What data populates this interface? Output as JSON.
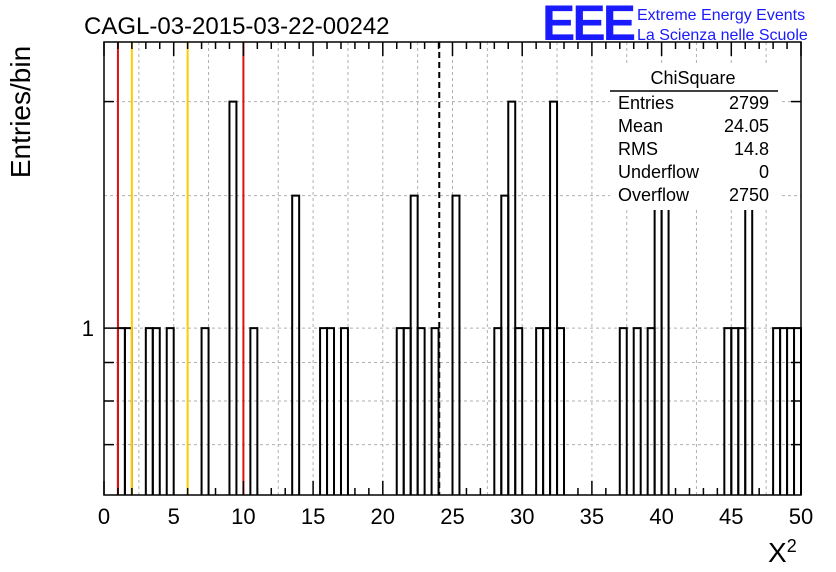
{
  "chart_data": {
    "type": "histogram",
    "title": "CAGL-03-2015-03-22-00242",
    "xlabel": "X",
    "xlabel_superscript": "2",
    "ylabel": "Entries/bin",
    "xlim": [
      0,
      50
    ],
    "ylim": [
      0.6,
      2.4
    ],
    "log_y": true,
    "grid": true,
    "bin_width": 0.5,
    "x_ticks": [
      0,
      5,
      10,
      15,
      20,
      25,
      30,
      35,
      40,
      45,
      50
    ],
    "y_tick_labels": [
      {
        "value": 1,
        "label": "1"
      }
    ],
    "bins": [
      {
        "x": 1.0,
        "count": 1
      },
      {
        "x": 1.5,
        "count": 1
      },
      {
        "x": 3.0,
        "count": 1
      },
      {
        "x": 3.5,
        "count": 1
      },
      {
        "x": 4.5,
        "count": 1
      },
      {
        "x": 7.0,
        "count": 1
      },
      {
        "x": 9.0,
        "count": 2
      },
      {
        "x": 10.5,
        "count": 1
      },
      {
        "x": 13.5,
        "count": 1.5
      },
      {
        "x": 15.5,
        "count": 1
      },
      {
        "x": 16.0,
        "count": 1
      },
      {
        "x": 17.0,
        "count": 1
      },
      {
        "x": 21.0,
        "count": 1
      },
      {
        "x": 21.5,
        "count": 1
      },
      {
        "x": 22.0,
        "count": 1.5
      },
      {
        "x": 22.5,
        "count": 1
      },
      {
        "x": 23.5,
        "count": 1
      },
      {
        "x": 25.0,
        "count": 1.5
      },
      {
        "x": 28.0,
        "count": 1
      },
      {
        "x": 28.5,
        "count": 1.5
      },
      {
        "x": 29.0,
        "count": 2
      },
      {
        "x": 29.5,
        "count": 1
      },
      {
        "x": 31.0,
        "count": 1
      },
      {
        "x": 31.5,
        "count": 1
      },
      {
        "x": 32.0,
        "count": 2
      },
      {
        "x": 32.5,
        "count": 1
      },
      {
        "x": 37.0,
        "count": 1
      },
      {
        "x": 38.0,
        "count": 1
      },
      {
        "x": 39.0,
        "count": 1
      },
      {
        "x": 39.5,
        "count": 1.5
      },
      {
        "x": 40.0,
        "count": 2
      },
      {
        "x": 44.5,
        "count": 1
      },
      {
        "x": 45.0,
        "count": 1
      },
      {
        "x": 45.5,
        "count": 1
      },
      {
        "x": 46.0,
        "count": 1.5
      },
      {
        "x": 48.0,
        "count": 1
      },
      {
        "x": 48.5,
        "count": 1
      },
      {
        "x": 49.0,
        "count": 1
      },
      {
        "x": 49.5,
        "count": 1
      }
    ],
    "vertical_lines": [
      {
        "x": 1.0,
        "color": "#dd1111",
        "style": "solid"
      },
      {
        "x": 2.0,
        "color": "#ffcc00",
        "style": "solid"
      },
      {
        "x": 6.0,
        "color": "#ffcc00",
        "style": "solid"
      },
      {
        "x": 10.0,
        "color": "#dd1111",
        "style": "solid"
      },
      {
        "x": 24.05,
        "color": "#000000",
        "style": "dashed"
      }
    ],
    "stats_box": {
      "title": "ChiSquare",
      "rows": [
        {
          "label": "Entries",
          "value": "2799"
        },
        {
          "label": "Mean",
          "value": "24.05"
        },
        {
          "label": "RMS",
          "value": "14.8"
        },
        {
          "label": "Underflow",
          "value": "0"
        },
        {
          "label": "Overflow",
          "value": "2750"
        }
      ]
    }
  },
  "logo": {
    "mark": "EEE",
    "line1": "Extreme Energy Events",
    "line2": "La Scienza nelle Scuole",
    "color": "#1a1aff"
  }
}
